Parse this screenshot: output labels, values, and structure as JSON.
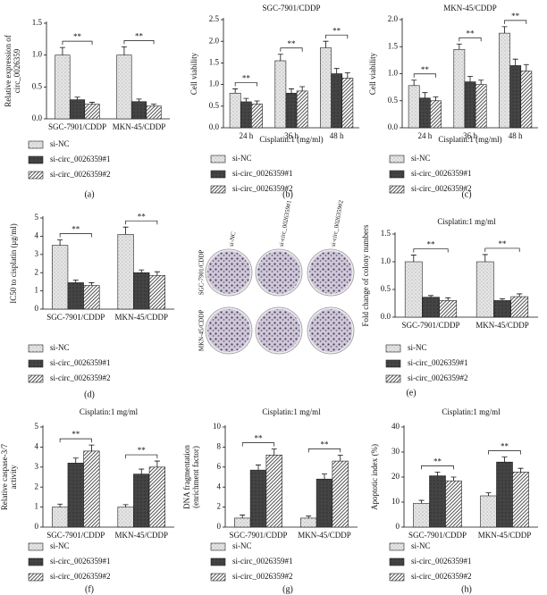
{
  "chart_data": [
    {
      "type": "bar",
      "ylabel": [
        "Relative expression of",
        "circ_0026359"
      ],
      "categories": [
        "SGC-7901/CDDP",
        "MKN-45/CDDP"
      ],
      "series": [
        {
          "name": "si-NC",
          "color": "#e6e6e6",
          "pattern": "dots",
          "values": [
            1.0,
            1.0
          ],
          "errors": [
            0.12,
            0.13
          ]
        },
        {
          "name": "si-circ_0026359#1",
          "color": "#444444",
          "pattern": "solid",
          "values": [
            0.3,
            0.27
          ],
          "errors": [
            0.04,
            0.04
          ]
        },
        {
          "name": "si-circ_0026359#2",
          "color": "#555555",
          "pattern": "hatch",
          "values": [
            0.23,
            0.2
          ],
          "errors": [
            0.03,
            0.03
          ]
        }
      ],
      "annotations": [
        "**",
        "**"
      ],
      "ylim": [
        0,
        1.5
      ],
      "yticks": [
        {
          "value": 0,
          "label": "0.0"
        },
        0.5,
        {
          "value": 1,
          "label": "1.0"
        },
        1.5
      ],
      "caption": "(a)"
    },
    {
      "type": "bar",
      "title": "SGC-7901/CDDP",
      "ylabel": [
        "Cell viability"
      ],
      "xlabel": "Cisplatin:1 (mg/ml)",
      "categories": [
        "24 h",
        "36 h",
        "48 h"
      ],
      "series": [
        {
          "name": "si-NC",
          "color": "#e6e6e6",
          "pattern": "dots",
          "values": [
            0.8,
            1.55,
            1.85
          ],
          "errors": [
            0.1,
            0.15,
            0.15
          ]
        },
        {
          "name": "si-circ_0026359#1",
          "color": "#444444",
          "pattern": "solid",
          "values": [
            0.6,
            0.8,
            1.25
          ],
          "errors": [
            0.08,
            0.1,
            0.12
          ]
        },
        {
          "name": "si-circ_0026359#2",
          "color": "#555555",
          "pattern": "hatch",
          "values": [
            0.55,
            0.85,
            1.15
          ],
          "errors": [
            0.07,
            0.1,
            0.12
          ]
        }
      ],
      "annotations": [
        "**",
        "**",
        "**"
      ],
      "ylim": [
        0,
        2.5
      ],
      "yticks": [
        {
          "value": 0,
          "label": "0.0"
        },
        0.5,
        {
          "value": 1,
          "label": "1.0"
        },
        1.5,
        {
          "value": 2,
          "label": "2.0"
        },
        2.5
      ],
      "caption": "(b)"
    },
    {
      "type": "bar",
      "title": "MKN-45/CDDP",
      "ylabel": [
        "Cell viability"
      ],
      "xlabel": "Cisplatin:1 (mg/ml)",
      "categories": [
        "24 h",
        "36 h",
        "48 h"
      ],
      "series": [
        {
          "name": "si-NC",
          "color": "#e6e6e6",
          "pattern": "dots",
          "values": [
            0.78,
            1.45,
            1.75
          ],
          "errors": [
            0.1,
            0.1,
            0.12
          ]
        },
        {
          "name": "si-circ_0026359#1",
          "color": "#444444",
          "pattern": "solid",
          "values": [
            0.55,
            0.85,
            1.15
          ],
          "errors": [
            0.1,
            0.1,
            0.12
          ]
        },
        {
          "name": "si-circ_0026359#2",
          "color": "#555555",
          "pattern": "hatch",
          "values": [
            0.5,
            0.8,
            1.05
          ],
          "errors": [
            0.07,
            0.08,
            0.12
          ]
        }
      ],
      "annotations": [
        "**",
        "**",
        "**"
      ],
      "ylim": [
        0,
        2
      ],
      "yticks": [
        {
          "value": 0,
          "label": "0.0"
        },
        0.5,
        {
          "value": 1,
          "label": "1.0"
        },
        1.5,
        {
          "value": 2,
          "label": "2.0"
        }
      ],
      "caption": "(c)"
    },
    {
      "type": "bar",
      "ylabel": [
        "IC50 to cisplatin (μg/ml)"
      ],
      "categories": [
        "SGC-7901/CDDP",
        "MKN-45/CDDP"
      ],
      "series": [
        {
          "name": "si-NC",
          "color": "#e6e6e6",
          "pattern": "dots",
          "values": [
            3.5,
            4.1
          ],
          "errors": [
            0.3,
            0.4
          ]
        },
        {
          "name": "si-circ_0026359#1",
          "color": "#444444",
          "pattern": "solid",
          "values": [
            1.45,
            2.0
          ],
          "errors": [
            0.15,
            0.15
          ]
        },
        {
          "name": "si-circ_0026359#2",
          "color": "#555555",
          "pattern": "hatch",
          "values": [
            1.3,
            1.85
          ],
          "errors": [
            0.15,
            0.2
          ]
        }
      ],
      "annotations": [
        "**",
        "**"
      ],
      "ylim": [
        0,
        5
      ],
      "yticks": [
        0,
        1,
        2,
        3,
        4,
        5
      ],
      "caption": "(d)"
    },
    {
      "type": "bar",
      "title": "Cisplatin:1 mg/ml",
      "ylabel": [
        "Fold change of colony numbers"
      ],
      "categories": [
        "SGC-7901/CDDP",
        "MKN-45/CDDP"
      ],
      "series": [
        {
          "name": "si-NC",
          "color": "#e6e6e6",
          "pattern": "dots",
          "values": [
            1.0,
            1.0
          ],
          "errors": [
            0.12,
            0.13
          ]
        },
        {
          "name": "si-circ_0026359#1",
          "color": "#444444",
          "pattern": "solid",
          "values": [
            0.36,
            0.3
          ],
          "errors": [
            0.03,
            0.03
          ]
        },
        {
          "name": "si-circ_0026359#2",
          "color": "#555555",
          "pattern": "hatch",
          "values": [
            0.3,
            0.37
          ],
          "errors": [
            0.05,
            0.05
          ]
        }
      ],
      "annotations": [
        "**",
        "**"
      ],
      "ylim": [
        0,
        1.5
      ],
      "yticks": [
        {
          "value": 0,
          "label": "0.0"
        },
        0.5,
        {
          "value": 1,
          "label": "1.0"
        },
        1.5
      ]
    },
    {
      "type": "bar",
      "title": "Cisplatin:1 mg/ml",
      "ylabel": [
        "Relative caspase-3/7",
        "activity"
      ],
      "categories": [
        "SGC-7901/CDDP",
        "MKN-45/CDDP"
      ],
      "series": [
        {
          "name": "si-NC",
          "color": "#e6e6e6",
          "pattern": "dots",
          "values": [
            1.0,
            1.0
          ],
          "errors": [
            0.15,
            0.12
          ]
        },
        {
          "name": "si-circ_0026359#1",
          "color": "#444444",
          "pattern": "solid",
          "values": [
            3.2,
            2.65
          ],
          "errors": [
            0.25,
            0.25
          ]
        },
        {
          "name": "si-circ_0026359#2",
          "color": "#555555",
          "pattern": "hatch",
          "values": [
            3.8,
            3.0
          ],
          "errors": [
            0.3,
            0.3
          ]
        }
      ],
      "annotations": [
        "**",
        "**"
      ],
      "ylim": [
        0,
        5
      ],
      "yticks": [
        0,
        1,
        2,
        3,
        4,
        5
      ],
      "caption": "(f)"
    },
    {
      "type": "bar",
      "title": "Cisplatin:1 mg/ml",
      "ylabel": [
        "DNA fragmentation",
        "(enrichment factor)"
      ],
      "categories": [
        "SGC-7901/CDDP",
        "MKN-45/CDDP"
      ],
      "series": [
        {
          "name": "si-NC",
          "color": "#e6e6e6",
          "pattern": "dots",
          "values": [
            0.9,
            0.9
          ],
          "errors": [
            0.3,
            0.2
          ]
        },
        {
          "name": "si-circ_0026359#1",
          "color": "#444444",
          "pattern": "solid",
          "values": [
            5.7,
            4.8
          ],
          "errors": [
            0.5,
            0.5
          ]
        },
        {
          "name": "si-circ_0026359#2",
          "color": "#555555",
          "pattern": "hatch",
          "values": [
            7.2,
            6.6
          ],
          "errors": [
            0.6,
            0.6
          ]
        }
      ],
      "annotations": [
        "**",
        "**"
      ],
      "ylim": [
        0,
        10
      ],
      "yticks": [
        0,
        2,
        4,
        6,
        8,
        10
      ],
      "caption": "(g)"
    },
    {
      "type": "bar",
      "title": "Cisplatin:1 mg/ml",
      "ylabel": [
        "Apoptotic index (%)"
      ],
      "categories": [
        "SGC-7901/CDDP",
        "MKN-45/CDDP"
      ],
      "series": [
        {
          "name": "si-NC",
          "color": "#e6e6e6",
          "pattern": "dots",
          "values": [
            9.5,
            12.5
          ],
          "errors": [
            1.2,
            1.2
          ]
        },
        {
          "name": "si-circ_0026359#1",
          "color": "#444444",
          "pattern": "solid",
          "values": [
            20.5,
            26
          ],
          "errors": [
            1.5,
            2
          ]
        },
        {
          "name": "si-circ_0026359#2",
          "color": "#555555",
          "pattern": "hatch",
          "values": [
            18.5,
            22
          ],
          "errors": [
            1.5,
            1.5
          ]
        }
      ],
      "annotations": [
        "**",
        "**"
      ],
      "ylim": [
        0,
        40
      ],
      "yticks": [
        0,
        10,
        20,
        30,
        40
      ],
      "caption": "(h)"
    }
  ],
  "colony_image": {
    "column_labels": [
      "si-NC",
      "si-circ_0026359#1",
      "si-circ_0026359#2"
    ],
    "row_labels": [
      "SGC-7901/CDDP",
      "MKN-45/CDDP"
    ],
    "caption": "(e)"
  }
}
